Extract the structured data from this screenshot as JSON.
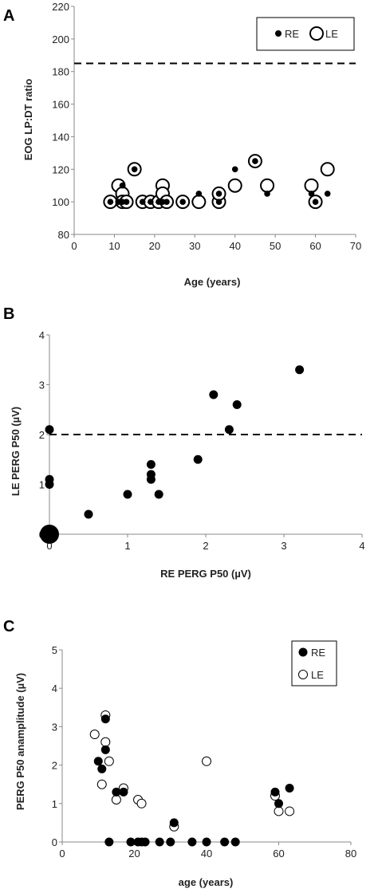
{
  "chart_data": [
    {
      "panel": "A",
      "type": "scatter",
      "xlabel": "Age (years)",
      "ylabel": "EOG LP:DT ratio",
      "xlim": [
        0,
        70
      ],
      "ylim": [
        80,
        220
      ],
      "xticks": [
        0,
        10,
        20,
        30,
        40,
        50,
        60,
        70
      ],
      "yticks": [
        80,
        100,
        120,
        140,
        160,
        180,
        200,
        220
      ],
      "legend_position": "top-right",
      "reference_line": {
        "axis": "y",
        "value": 185,
        "style": "dashed"
      },
      "series": [
        {
          "name": "RE",
          "marker": "small-filled",
          "points": [
            [
              9,
              100
            ],
            [
              11,
              100
            ],
            [
              12,
              110
            ],
            [
              12,
              100
            ],
            [
              13,
              100
            ],
            [
              15,
              120
            ],
            [
              17,
              100
            ],
            [
              19,
              100
            ],
            [
              21,
              100
            ],
            [
              22,
              100
            ],
            [
              23,
              100
            ],
            [
              27,
              100
            ],
            [
              31,
              105
            ],
            [
              36,
              100
            ],
            [
              36,
              105
            ],
            [
              40,
              120
            ],
            [
              45,
              125
            ],
            [
              48,
              105
            ],
            [
              59,
              105
            ],
            [
              60,
              100
            ],
            [
              63,
              105
            ]
          ]
        },
        {
          "name": "LE",
          "marker": "large-open",
          "points": [
            [
              9,
              100
            ],
            [
              11,
              110
            ],
            [
              12,
              105
            ],
            [
              12,
              100
            ],
            [
              13,
              100
            ],
            [
              15,
              120
            ],
            [
              17,
              100
            ],
            [
              19,
              100
            ],
            [
              21,
              100
            ],
            [
              22,
              110
            ],
            [
              22,
              105
            ],
            [
              23,
              100
            ],
            [
              27,
              100
            ],
            [
              31,
              100
            ],
            [
              36,
              100
            ],
            [
              36,
              105
            ],
            [
              40,
              110
            ],
            [
              45,
              125
            ],
            [
              48,
              110
            ],
            [
              59,
              110
            ],
            [
              60,
              100
            ],
            [
              63,
              120
            ]
          ]
        }
      ]
    },
    {
      "panel": "B",
      "type": "scatter",
      "xlabel": "RE PERG P50 (µV)",
      "ylabel": "LE PERG P50 (µV)",
      "xlim": [
        0,
        4
      ],
      "ylim": [
        0,
        4
      ],
      "xticks": [
        0,
        1,
        2,
        3,
        4
      ],
      "yticks": [
        0,
        1,
        2,
        3,
        4
      ],
      "reference_line": {
        "axis": "y",
        "value": 2,
        "style": "dashed"
      },
      "large_point": [
        0,
        0
      ],
      "points": [
        [
          0,
          2.1
        ],
        [
          0,
          1.1
        ],
        [
          0,
          1.0
        ],
        [
          0.5,
          0.4
        ],
        [
          1.0,
          0.8
        ],
        [
          1.3,
          1.4
        ],
        [
          1.3,
          1.2
        ],
        [
          1.3,
          1.1
        ],
        [
          1.4,
          0.8
        ],
        [
          1.9,
          1.5
        ],
        [
          2.1,
          2.8
        ],
        [
          2.3,
          2.1
        ],
        [
          2.4,
          2.6
        ],
        [
          3.2,
          3.3
        ]
      ]
    },
    {
      "panel": "C",
      "type": "scatter",
      "xlabel": "age (years)",
      "ylabel": "PERG P50 anamplitude (µV)",
      "xlim": [
        0,
        80
      ],
      "ylim": [
        0,
        5
      ],
      "xticks": [
        0,
        20,
        40,
        60,
        80
      ],
      "yticks": [
        0,
        1,
        2,
        3,
        4,
        5
      ],
      "legend_position": "top-right",
      "series": [
        {
          "name": "RE",
          "marker": "filled",
          "points": [
            [
              10,
              2.1
            ],
            [
              12,
              3.2
            ],
            [
              12,
              2.4
            ],
            [
              11,
              1.9
            ],
            [
              15,
              1.3
            ],
            [
              17,
              1.3
            ],
            [
              13,
              0
            ],
            [
              19,
              0
            ],
            [
              21,
              0
            ],
            [
              22,
              0
            ],
            [
              23,
              0
            ],
            [
              27,
              0
            ],
            [
              30,
              0
            ],
            [
              31,
              0.5
            ],
            [
              36,
              0
            ],
            [
              40,
              0
            ],
            [
              45,
              0
            ],
            [
              48,
              0
            ],
            [
              59,
              1.3
            ],
            [
              60,
              1.0
            ],
            [
              63,
              1.4
            ]
          ]
        },
        {
          "name": "LE",
          "marker": "open",
          "points": [
            [
              9,
              2.8
            ],
            [
              12,
              3.3
            ],
            [
              12,
              2.6
            ],
            [
              13,
              2.1
            ],
            [
              11,
              1.5
            ],
            [
              15,
              1.1
            ],
            [
              17,
              1.4
            ],
            [
              21,
              1.1
            ],
            [
              22,
              1.0
            ],
            [
              31,
              0.4
            ],
            [
              40,
              2.1
            ],
            [
              59,
              1.2
            ],
            [
              60,
              0.8
            ],
            [
              63,
              0.8
            ]
          ]
        }
      ]
    }
  ]
}
